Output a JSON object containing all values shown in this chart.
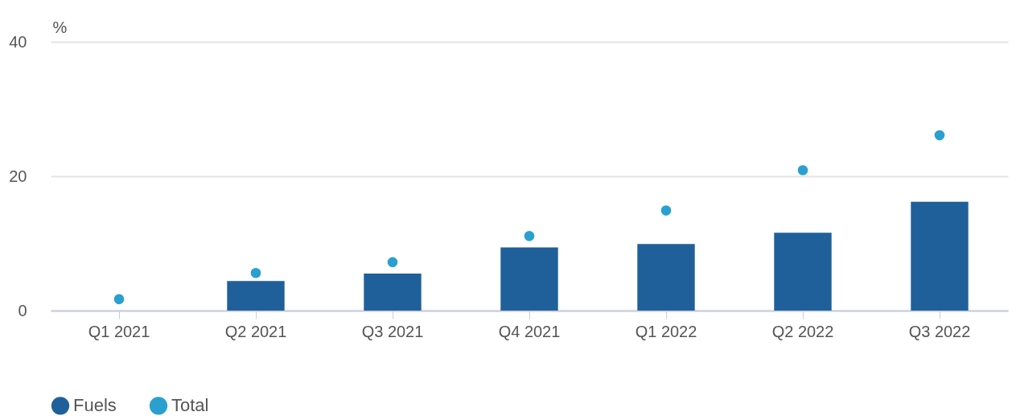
{
  "chart_data": {
    "type": "bar",
    "ylabel": "%",
    "categories": [
      "Q1 2021",
      "Q2 2021",
      "Q3 2021",
      "Q4 2021",
      "Q1 2022",
      "Q2 2022",
      "Q3 2022"
    ],
    "series": [
      {
        "name": "Fuels",
        "color": "#20609a",
        "values": [
          null,
          4.4,
          5.5,
          9.4,
          9.9,
          11.6,
          16.2
        ]
      },
      {
        "name": "Total",
        "type": "scatter",
        "color": "#2aa0d0",
        "values": [
          1.7,
          5.6,
          7.2,
          11.1,
          14.9,
          20.9,
          26.1
        ]
      }
    ],
    "ylim": [
      0,
      40
    ],
    "yticks": [
      0,
      20,
      40
    ],
    "grid": "y",
    "legend": "bottom",
    "marker": "circle"
  }
}
